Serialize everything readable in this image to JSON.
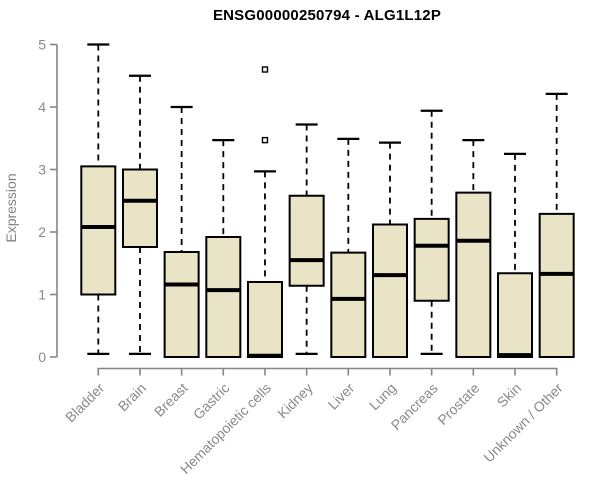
{
  "title": "ENSG00000250794 - ALG1L12P",
  "chart_data": {
    "type": "boxplot",
    "title": "ENSG00000250794 - ALG1L12P",
    "xlabel": "",
    "ylabel": "Expression",
    "ylim": [
      0,
      5
    ],
    "yticks": [
      0,
      1,
      2,
      3,
      4,
      5
    ],
    "grid": false,
    "legend": false,
    "categories": [
      "Bladder",
      "Brain",
      "Breast",
      "Gastric",
      "Hematopoietic cells",
      "Kidney",
      "Liver",
      "Lung",
      "Pancreas",
      "Prostate",
      "Skin",
      "Unknown / Other"
    ],
    "series": [
      {
        "category": "Bladder",
        "min": 0.05,
        "q1": 1.0,
        "median": 2.08,
        "q3": 3.05,
        "max": 5.0,
        "outliers": []
      },
      {
        "category": "Brain",
        "min": 0.05,
        "q1": 1.76,
        "median": 2.5,
        "q3": 3.0,
        "max": 4.5,
        "outliers": []
      },
      {
        "category": "Breast",
        "min": 0.0,
        "q1": 0.0,
        "median": 1.16,
        "q3": 1.68,
        "max": 4.0,
        "outliers": []
      },
      {
        "category": "Gastric",
        "min": 0.0,
        "q1": 0.0,
        "median": 1.07,
        "q3": 1.92,
        "max": 3.47,
        "outliers": []
      },
      {
        "category": "Hematopoietic cells",
        "min": 0.0,
        "q1": 0.0,
        "median": 0.02,
        "q3": 1.2,
        "max": 2.97,
        "outliers": [
          3.47,
          4.6
        ]
      },
      {
        "category": "Kidney",
        "min": 0.05,
        "q1": 1.14,
        "median": 1.55,
        "q3": 2.58,
        "max": 3.72,
        "outliers": []
      },
      {
        "category": "Liver",
        "min": 0.0,
        "q1": 0.0,
        "median": 0.93,
        "q3": 1.67,
        "max": 3.49,
        "outliers": []
      },
      {
        "category": "Lung",
        "min": 0.0,
        "q1": 0.0,
        "median": 1.31,
        "q3": 2.12,
        "max": 3.43,
        "outliers": []
      },
      {
        "category": "Pancreas",
        "min": 0.05,
        "q1": 0.9,
        "median": 1.78,
        "q3": 2.21,
        "max": 3.94,
        "outliers": []
      },
      {
        "category": "Prostate",
        "min": 0.0,
        "q1": 0.0,
        "median": 1.86,
        "q3": 2.63,
        "max": 3.47,
        "outliers": []
      },
      {
        "category": "Skin",
        "min": 0.0,
        "q1": 0.0,
        "median": 0.03,
        "q3": 1.34,
        "max": 3.25,
        "outliers": []
      },
      {
        "category": "Unknown / Other",
        "min": 0.0,
        "q1": 0.0,
        "median": 1.33,
        "q3": 2.29,
        "max": 4.21,
        "outliers": []
      }
    ],
    "colors": {
      "box_fill": "#EAE4C7",
      "box_border": "#000000",
      "median": "#000000",
      "whisker": "#000000",
      "axis": "#858585",
      "tick_label": "#8a8a8a",
      "title": "#000000",
      "background": "#ffffff"
    }
  }
}
